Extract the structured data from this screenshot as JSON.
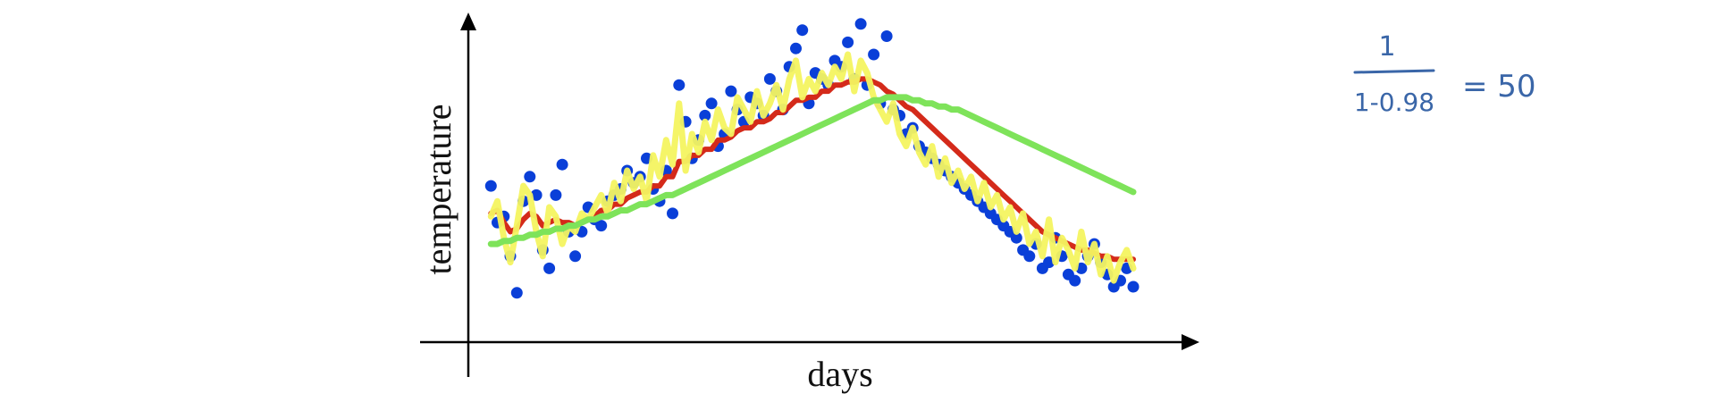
{
  "chart_data": {
    "type": "scatter",
    "xlabel": "days",
    "ylabel": "temperature",
    "xlim": [
      0,
      100
    ],
    "ylim": [
      0,
      100
    ],
    "grid": false,
    "legend": "none",
    "x": [
      1,
      2,
      3,
      4,
      5,
      6,
      7,
      8,
      9,
      10,
      11,
      12,
      13,
      14,
      15,
      16,
      17,
      18,
      19,
      20,
      21,
      22,
      23,
      24,
      25,
      26,
      27,
      28,
      29,
      30,
      31,
      32,
      33,
      34,
      35,
      36,
      37,
      38,
      39,
      40,
      41,
      42,
      43,
      44,
      45,
      46,
      47,
      48,
      49,
      50,
      51,
      52,
      53,
      54,
      55,
      56,
      57,
      58,
      59,
      60,
      61,
      62,
      63,
      64,
      65,
      66,
      67,
      68,
      69,
      70,
      71,
      72,
      73,
      74,
      75,
      76,
      77,
      78,
      79,
      80,
      81,
      82,
      83,
      84,
      85,
      86,
      87,
      88,
      89,
      90,
      91,
      92,
      93,
      94,
      95,
      96,
      97,
      98,
      99,
      100
    ],
    "values": [
      45,
      33,
      35,
      22,
      10,
      40,
      48,
      42,
      24,
      18,
      42,
      52,
      30,
      22,
      30,
      38,
      34,
      32,
      40,
      42,
      44,
      50,
      46,
      48,
      54,
      44,
      40,
      50,
      36,
      78,
      66,
      54,
      60,
      68,
      72,
      58,
      62,
      76,
      70,
      66,
      74,
      72,
      68,
      80,
      76,
      70,
      84,
      90,
      96,
      72,
      82,
      80,
      78,
      86,
      84,
      92,
      80,
      98,
      78,
      88,
      72,
      94,
      70,
      68,
      62,
      64,
      58,
      56,
      54,
      52,
      50,
      48,
      46,
      44,
      42,
      40,
      38,
      36,
      34,
      32,
      30,
      28,
      24,
      22,
      26,
      18,
      20,
      28,
      22,
      16,
      14,
      18,
      22,
      26,
      20,
      16,
      12,
      14,
      18,
      12
    ],
    "series": [
      {
        "name": "",
        "color": "#f4f460",
        "values": [
          35,
          40,
          28,
          20,
          32,
          45,
          42,
          30,
          22,
          38,
          35,
          26,
          32,
          30,
          36,
          34,
          38,
          42,
          36,
          46,
          40,
          50,
          44,
          48,
          40,
          55,
          48,
          60,
          52,
          72,
          50,
          62,
          56,
          66,
          60,
          70,
          64,
          62,
          74,
          70,
          66,
          76,
          68,
          72,
          78,
          70,
          80,
          86,
          74,
          80,
          76,
          82,
          78,
          84,
          80,
          88,
          76,
          86,
          82,
          74,
          70,
          66,
          72,
          62,
          58,
          64,
          56,
          52,
          58,
          48,
          54,
          46,
          50,
          44,
          48,
          40,
          46,
          38,
          42,
          34,
          38,
          30,
          36,
          26,
          30,
          22,
          34,
          20,
          28,
          24,
          18,
          30,
          20,
          26,
          16,
          22,
          14,
          20,
          24,
          18
        ]
      },
      {
        "name": "",
        "color": "#d42a1a",
        "values": [
          36,
          37,
          33,
          30,
          31,
          34,
          36,
          35,
          32,
          33,
          34,
          33,
          33,
          32,
          33,
          34,
          35,
          37,
          37,
          39,
          39,
          41,
          42,
          43,
          43,
          45,
          45,
          48,
          48,
          53,
          53,
          55,
          55,
          57,
          57,
          60,
          60,
          61,
          63,
          64,
          64,
          66,
          66,
          67,
          69,
          69,
          71,
          73,
          73,
          74,
          74,
          76,
          76,
          78,
          78,
          79,
          79,
          80,
          80,
          79,
          78,
          76,
          75,
          73,
          71,
          70,
          68,
          66,
          64,
          62,
          60,
          58,
          56,
          54,
          52,
          50,
          48,
          46,
          44,
          42,
          40,
          38,
          36,
          34,
          32,
          30,
          29,
          28,
          27,
          26,
          25,
          24,
          24,
          23,
          22,
          22,
          21,
          21,
          21,
          21
        ]
      },
      {
        "name": "",
        "color": "#7ee35a",
        "values": [
          26,
          26,
          27,
          27,
          28,
          28,
          29,
          29,
          30,
          30,
          31,
          31,
          32,
          32,
          33,
          34,
          34,
          35,
          35,
          36,
          37,
          37,
          38,
          39,
          39,
          40,
          41,
          42,
          42,
          43,
          44,
          45,
          46,
          47,
          48,
          49,
          50,
          51,
          52,
          53,
          54,
          55,
          56,
          57,
          58,
          59,
          60,
          61,
          62,
          63,
          64,
          65,
          66,
          67,
          68,
          69,
          70,
          71,
          72,
          73,
          73,
          74,
          74,
          74,
          74,
          73,
          73,
          72,
          72,
          71,
          71,
          70,
          70,
          69,
          68,
          67,
          66,
          65,
          64,
          63,
          62,
          61,
          60,
          59,
          58,
          57,
          56,
          55,
          54,
          53,
          52,
          51,
          50,
          49,
          48,
          47,
          46,
          45,
          44,
          43
        ]
      }
    ]
  },
  "annotation": {
    "numerator": "1",
    "denominator": "1-0.98",
    "equals": "= 50",
    "color": "#3a66a8"
  }
}
